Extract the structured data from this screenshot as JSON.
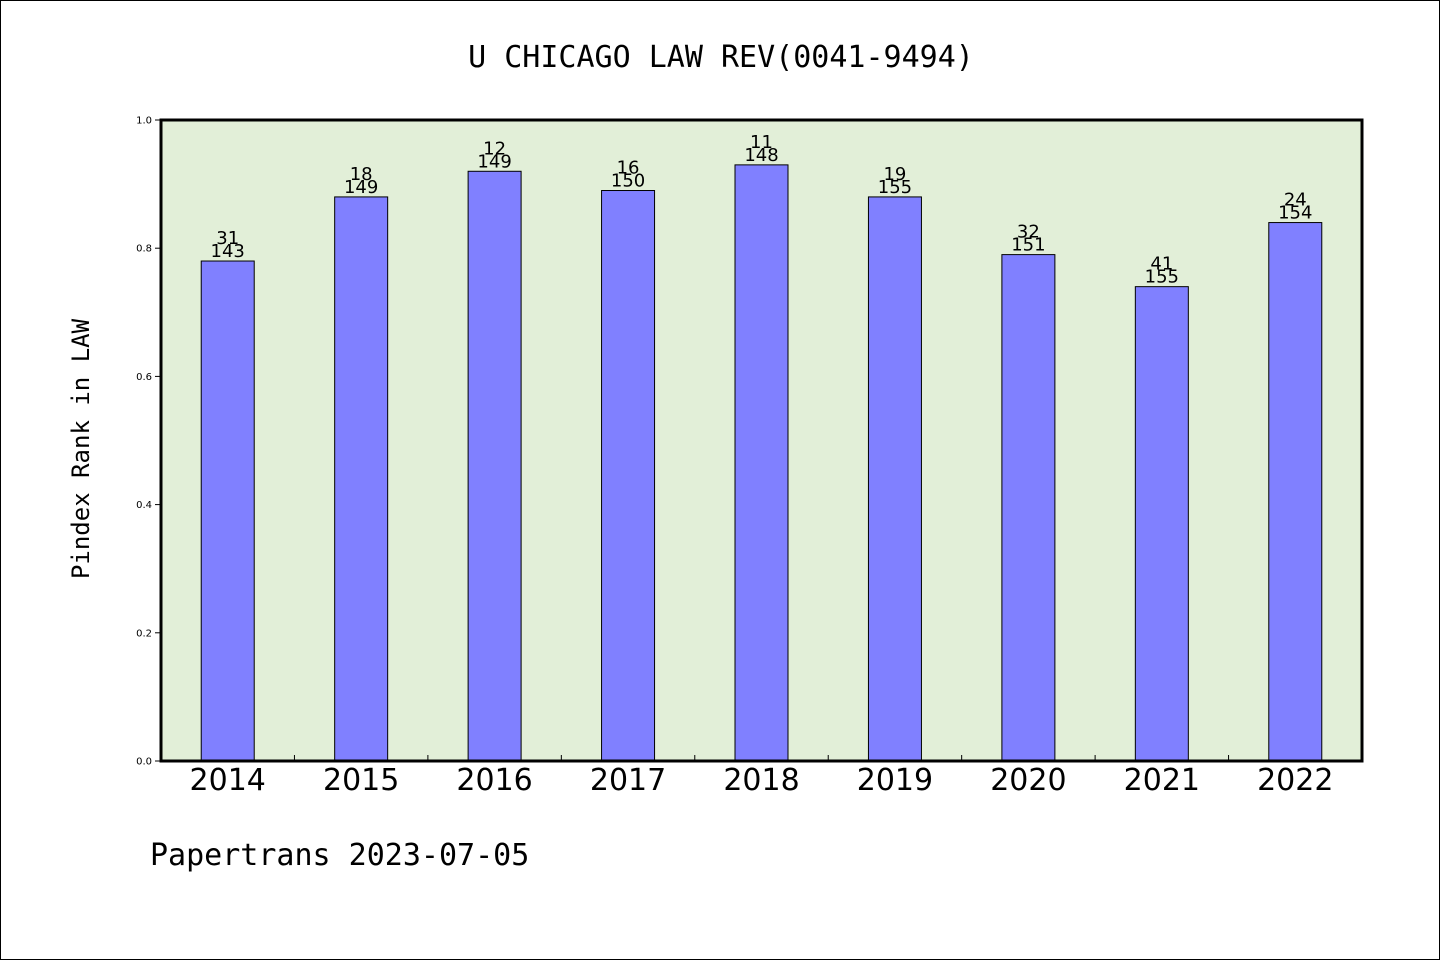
{
  "colors": {
    "plot_background": "#e2efd8",
    "bar_fill": "#8080ff",
    "bar_stroke": "#000000",
    "axis": "#000000"
  },
  "footer": "Papertrans 2023-07-05",
  "chart_data": {
    "type": "bar",
    "title": "U CHICAGO LAW REV(0041-9494)",
    "xlabel": "",
    "ylabel": "Pindex Rank in LAW",
    "ylim": [
      0.0,
      1.0
    ],
    "yticks": [
      "0.0",
      "0.2",
      "0.4",
      "0.6",
      "0.8",
      "1.0"
    ],
    "grid": false,
    "categories": [
      "2014",
      "2015",
      "2016",
      "2017",
      "2018",
      "2019",
      "2020",
      "2021",
      "2022"
    ],
    "values": [
      0.78,
      0.88,
      0.92,
      0.89,
      0.93,
      0.88,
      0.79,
      0.74,
      0.84
    ],
    "rank_labels": [
      "31",
      "18",
      "12",
      "16",
      "11",
      "19",
      "32",
      "41",
      "24"
    ],
    "total_labels": [
      "143",
      "149",
      "149",
      "150",
      "148",
      "155",
      "151",
      "155",
      "154"
    ]
  }
}
